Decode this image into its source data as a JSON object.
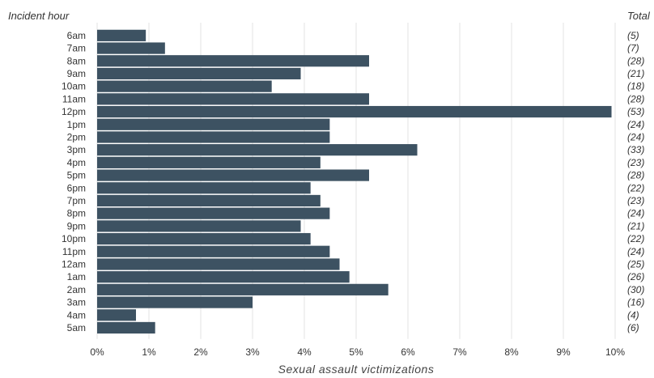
{
  "chart_data": {
    "type": "bar",
    "orientation": "horizontal",
    "ylabel": "Incident hour",
    "totals_label": "Total",
    "xlabel": "Sexual assault victimizations",
    "xlim": [
      0,
      10
    ],
    "x_ticks": [
      "0%",
      "1%",
      "2%",
      "3%",
      "4%",
      "5%",
      "6%",
      "7%",
      "8%",
      "9%",
      "10%"
    ],
    "grid": true,
    "categories": [
      "6am",
      "7am",
      "8am",
      "9am",
      "10am",
      "11am",
      "12pm",
      "1pm",
      "2pm",
      "3pm",
      "4pm",
      "5pm",
      "6pm",
      "7pm",
      "8pm",
      "9pm",
      "10pm",
      "11pm",
      "12am",
      "1am",
      "2am",
      "3am",
      "4am",
      "5am"
    ],
    "values": [
      0.94,
      1.31,
      5.25,
      3.93,
      3.37,
      5.25,
      9.93,
      4.49,
      4.49,
      6.18,
      4.31,
      5.25,
      4.12,
      4.31,
      4.49,
      3.93,
      4.12,
      4.49,
      4.68,
      4.87,
      5.62,
      3.0,
      0.75,
      1.12
    ],
    "totals": [
      "(5)",
      "(7)",
      "(28)",
      "(21)",
      "(18)",
      "(28)",
      "(53)",
      "(24)",
      "(24)",
      "(33)",
      "(23)",
      "(28)",
      "(22)",
      "(23)",
      "(24)",
      "(21)",
      "(22)",
      "(24)",
      "(25)",
      "(26)",
      "(30)",
      "(16)",
      "(4)",
      "(6)"
    ],
    "colors": {
      "bar": "#3d5262",
      "grid": "#e3e3e3"
    }
  }
}
